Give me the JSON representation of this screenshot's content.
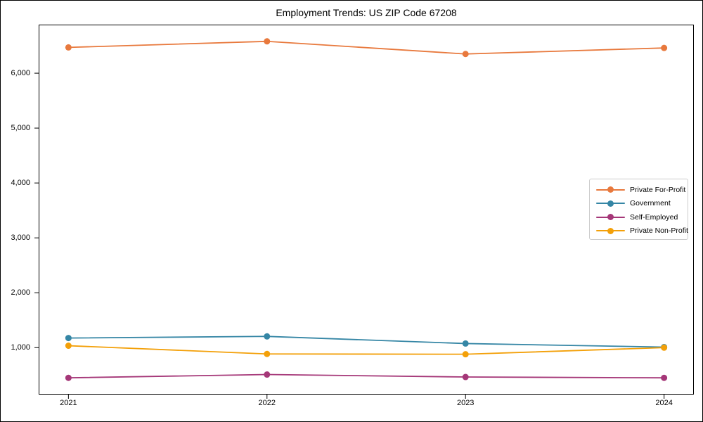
{
  "figure": {
    "title": "Employment Trends: US ZIP Code 67208"
  },
  "chart_data": {
    "type": "line",
    "title": "Employment Trends: US ZIP Code 67208",
    "xlabel": "",
    "ylabel": "",
    "x": [
      2021,
      2022,
      2023,
      2024
    ],
    "x_labels": [
      "2021",
      "2022",
      "2023",
      "2024"
    ],
    "yticks": [
      1000,
      2000,
      3000,
      4000,
      5000,
      6000
    ],
    "ytick_labels": [
      "1,000",
      "2,000",
      "3,000",
      "4,000",
      "5,000",
      "6,000"
    ],
    "xlim": [
      2020.85,
      2024.15
    ],
    "ylim": [
      145,
      6885
    ],
    "grid": false,
    "marker": "circle",
    "legend_position": "center right",
    "series": [
      {
        "name": "Private For-Profit",
        "color": "#e8793d",
        "values": [
          6470,
          6580,
          6350,
          6460
        ]
      },
      {
        "name": "Government",
        "color": "#3586a5",
        "values": [
          1175,
          1205,
          1075,
          1010
        ]
      },
      {
        "name": "Self-Employed",
        "color": "#a53778",
        "values": [
          450,
          510,
          465,
          450
        ]
      },
      {
        "name": "Private Non-Profit",
        "color": "#f3a009",
        "values": [
          1035,
          885,
          880,
          1000
        ]
      }
    ]
  }
}
